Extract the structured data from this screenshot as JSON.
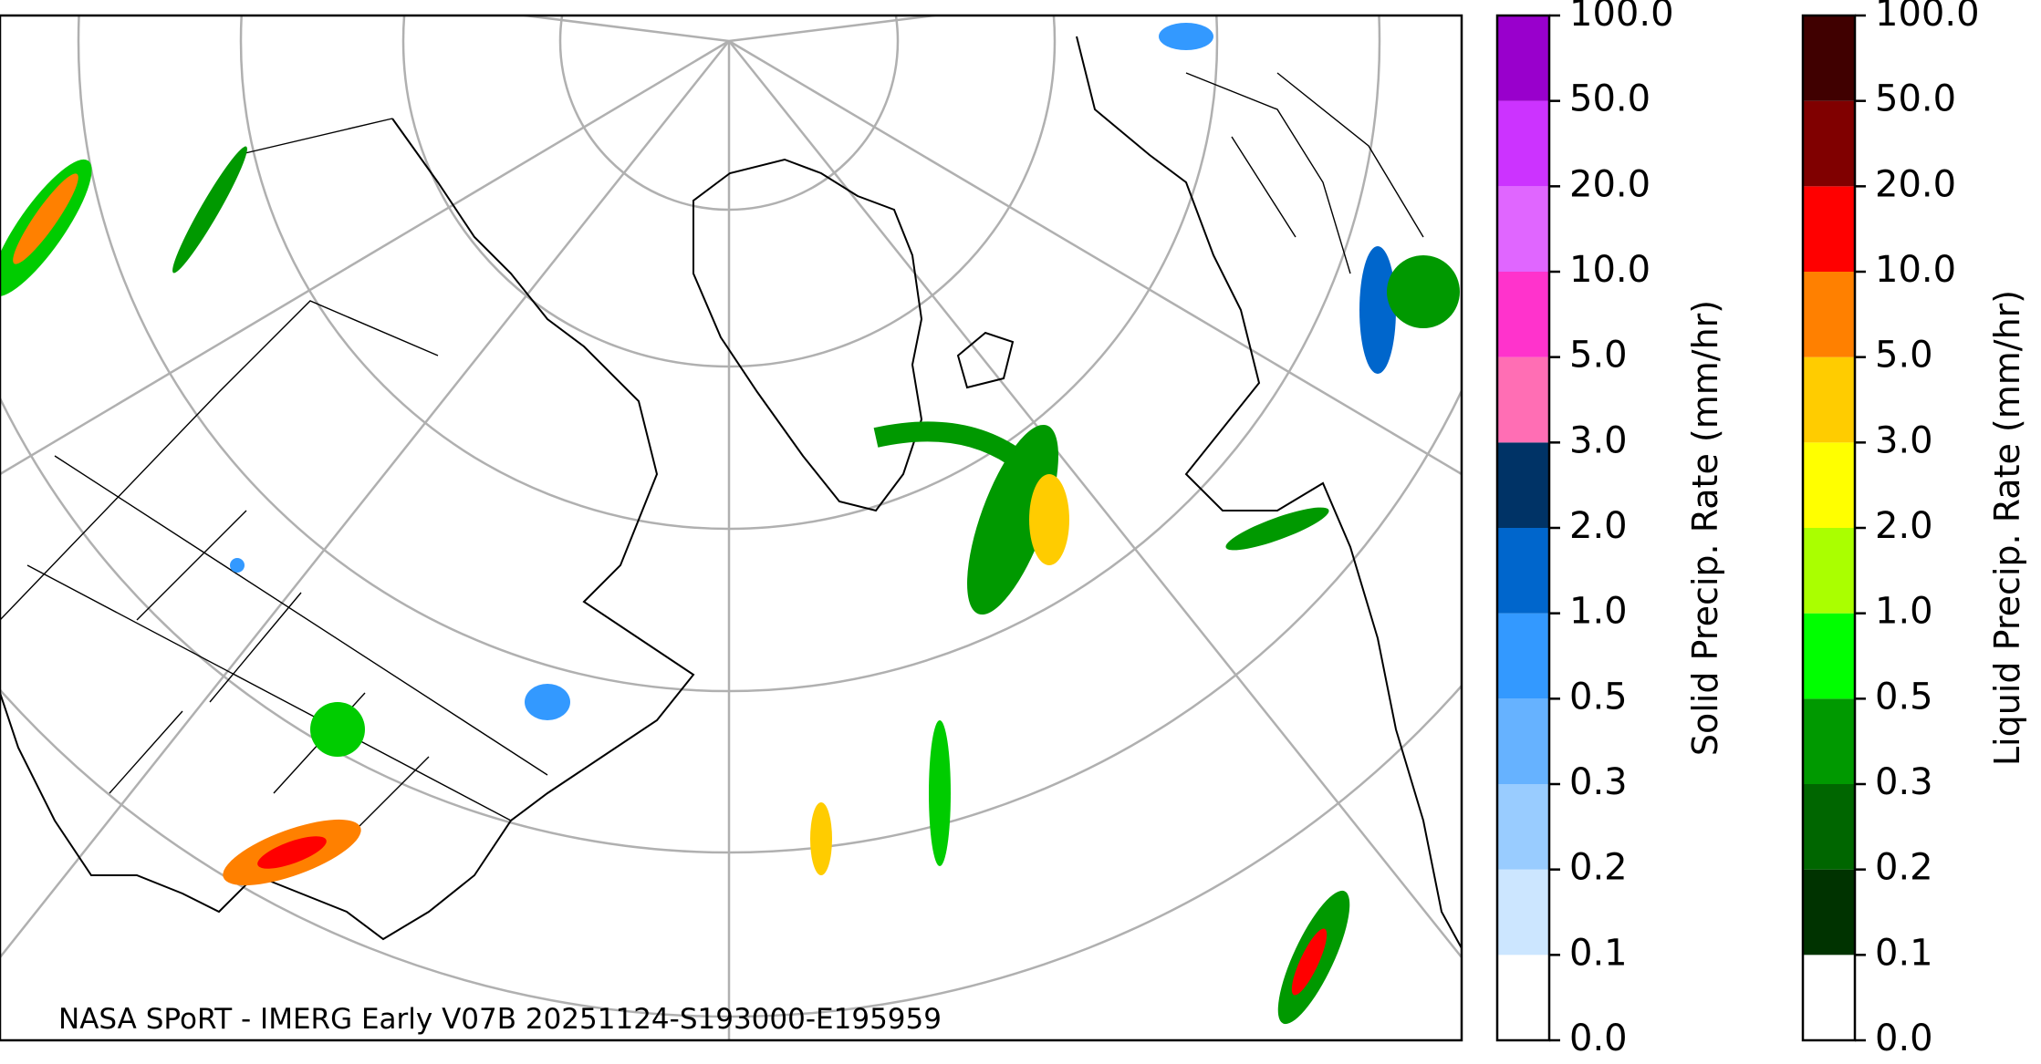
{
  "map": {
    "caption": "NASA SPoRT - IMERG Early V07B 20251124-S193000-E195959"
  },
  "colorbars": [
    {
      "label": "Solid Precip. Rate (mm/hr)",
      "ticks": [
        {
          "value": 0,
          "label": "0.0"
        },
        {
          "value": 0.1,
          "label": "0.1"
        },
        {
          "value": 0.2,
          "label": "0.2"
        },
        {
          "value": 0.3,
          "label": "0.3"
        },
        {
          "value": 0.5,
          "label": "0.5"
        },
        {
          "value": 1,
          "label": "1.0"
        },
        {
          "value": 2,
          "label": "2.0"
        },
        {
          "value": 3,
          "label": "3.0"
        },
        {
          "value": 5,
          "label": "5.0"
        },
        {
          "value": 10,
          "label": "10.0"
        },
        {
          "value": 20,
          "label": "20.0"
        },
        {
          "value": 50,
          "label": "50.0"
        },
        {
          "value": 100,
          "label": "100.0"
        }
      ],
      "colors": [
        "#ffffff",
        "#cce6ff",
        "#99ccff",
        "#66b2ff",
        "#3399ff",
        "#0066cc",
        "#003366",
        "#ff6eb4",
        "#ff33cc",
        "#e066ff",
        "#cc33ff",
        "#9900cc"
      ]
    },
    {
      "label": "Liquid Precip. Rate (mm/hr)",
      "ticks": [
        {
          "value": 0,
          "label": "0.0"
        },
        {
          "value": 0.1,
          "label": "0.1"
        },
        {
          "value": 0.2,
          "label": "0.2"
        },
        {
          "value": 0.3,
          "label": "0.3"
        },
        {
          "value": 0.5,
          "label": "0.5"
        },
        {
          "value": 1,
          "label": "1.0"
        },
        {
          "value": 2,
          "label": "2.0"
        },
        {
          "value": 3,
          "label": "3.0"
        },
        {
          "value": 5,
          "label": "5.0"
        },
        {
          "value": 10,
          "label": "10.0"
        },
        {
          "value": 20,
          "label": "20.0"
        },
        {
          "value": 50,
          "label": "50.0"
        },
        {
          "value": 100,
          "label": "100.0"
        }
      ],
      "colors": [
        "#ffffff",
        "#003300",
        "#006600",
        "#009900",
        "#00ff00",
        "#aaff00",
        "#ffff00",
        "#ffcc00",
        "#ff8000",
        "#ff0000",
        "#800000",
        "#400000"
      ]
    }
  ]
}
